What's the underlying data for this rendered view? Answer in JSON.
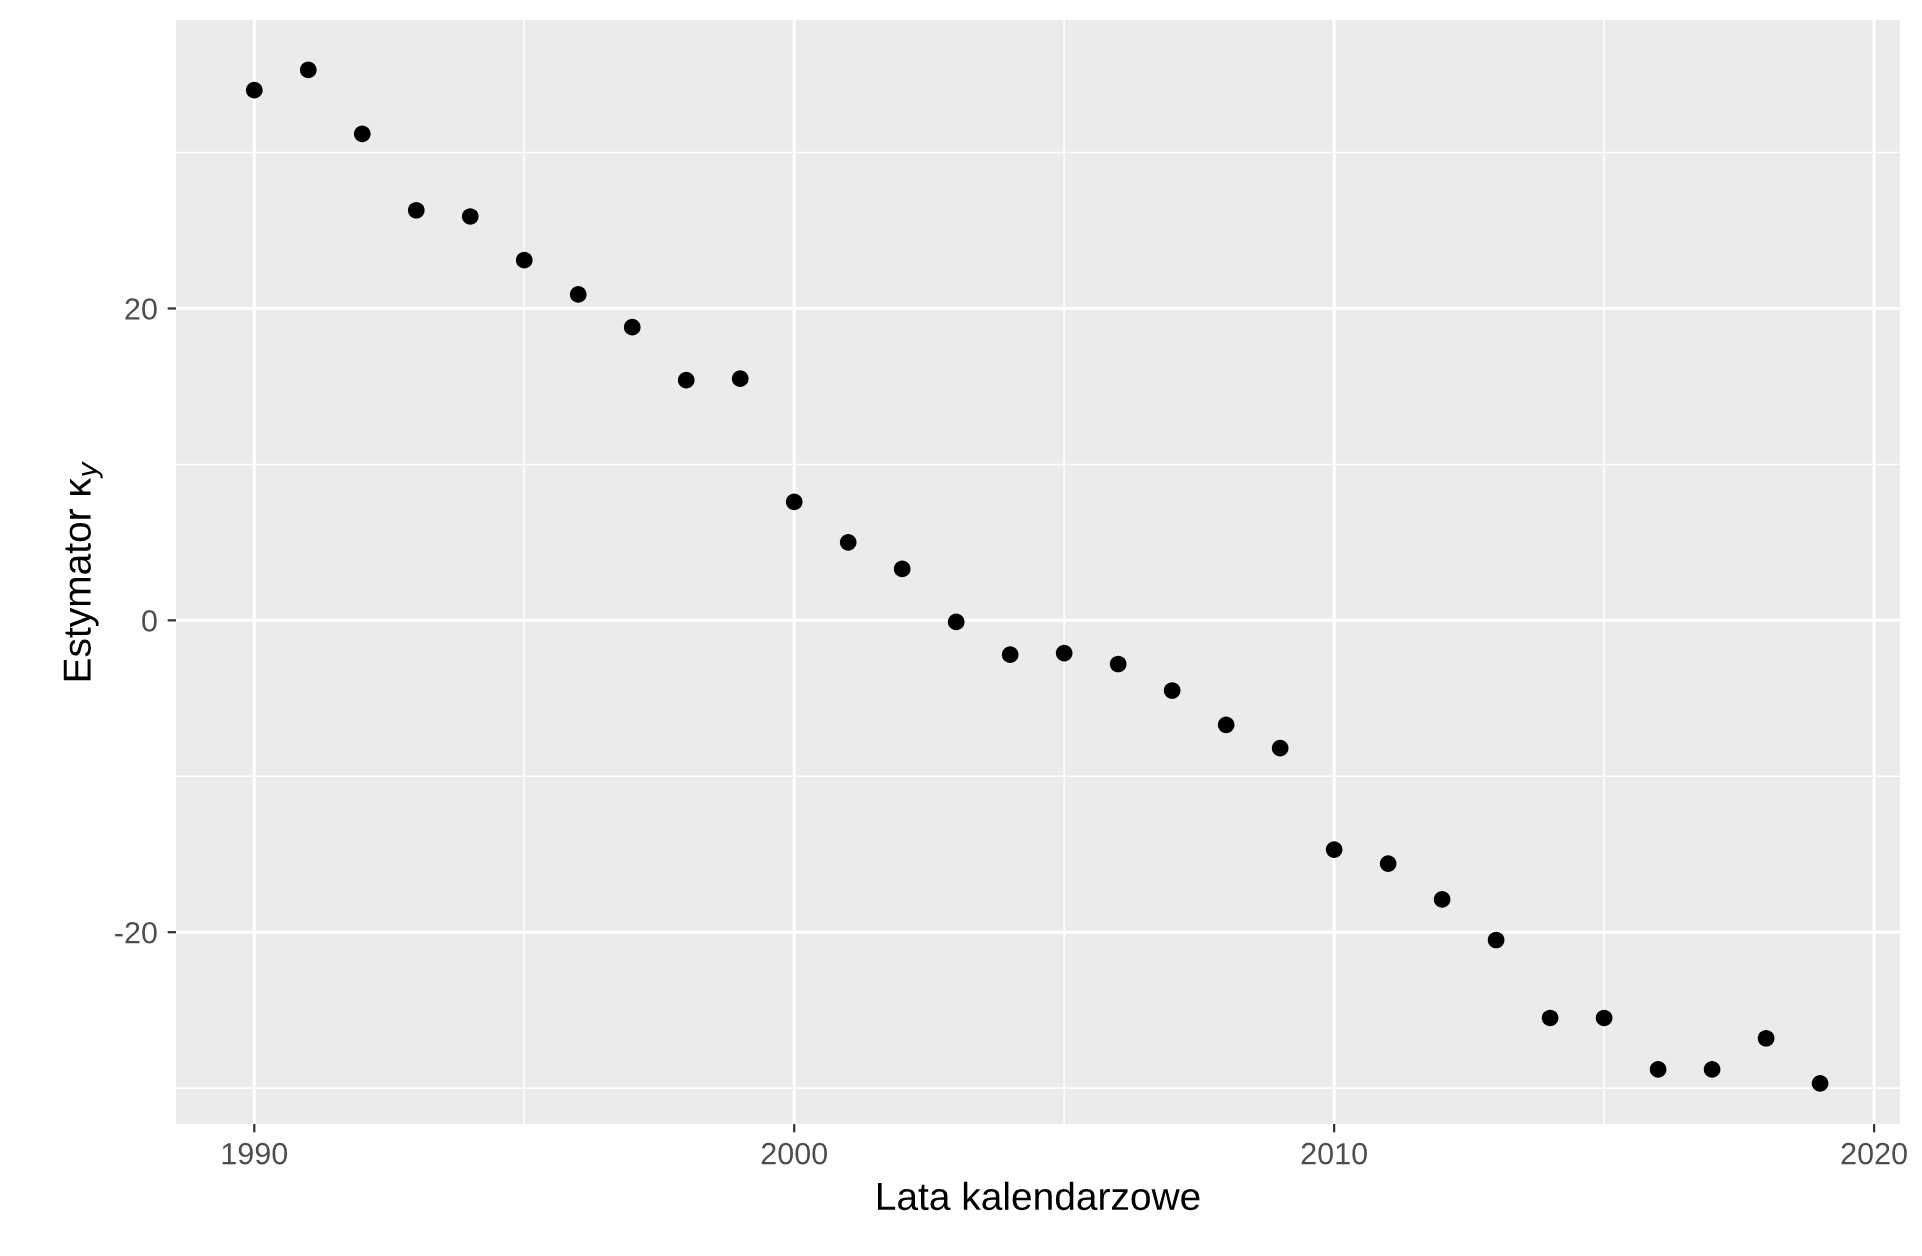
{
  "chart_data": {
    "type": "scatter",
    "xlabel": "Lata kalendarzowe",
    "ylabel": "Estymator κ$_{y}$",
    "x": [
      1990,
      1991,
      1992,
      1993,
      1994,
      1995,
      1996,
      1997,
      1998,
      1999,
      2000,
      2001,
      2002,
      2003,
      2004,
      2005,
      2006,
      2007,
      2008,
      2009,
      2010,
      2011,
      2012,
      2013,
      2014,
      2015,
      2016,
      2017,
      2018,
      2019
    ],
    "series": [
      {
        "color": "#000000",
        "values": [
          34.0,
          35.3,
          31.2,
          26.3,
          25.9,
          23.1,
          20.9,
          18.8,
          15.4,
          15.5,
          7.6,
          5.0,
          3.3,
          -0.1,
          -2.2,
          -2.1,
          -2.8,
          -4.5,
          -6.7,
          -8.2,
          -14.7,
          -15.6,
          -17.9,
          -20.5,
          -25.5,
          -25.5,
          -28.8,
          -28.8,
          -26.8,
          -29.7
        ]
      }
    ],
    "xlim": [
      1988.55,
      2020.48
    ],
    "xticks": [
      1990,
      2000,
      2010,
      2020
    ],
    "ylim": [
      -32.3,
      38.5
    ],
    "yticks": [
      -20,
      0,
      20
    ],
    "grid": true,
    "marker": "circle"
  }
}
